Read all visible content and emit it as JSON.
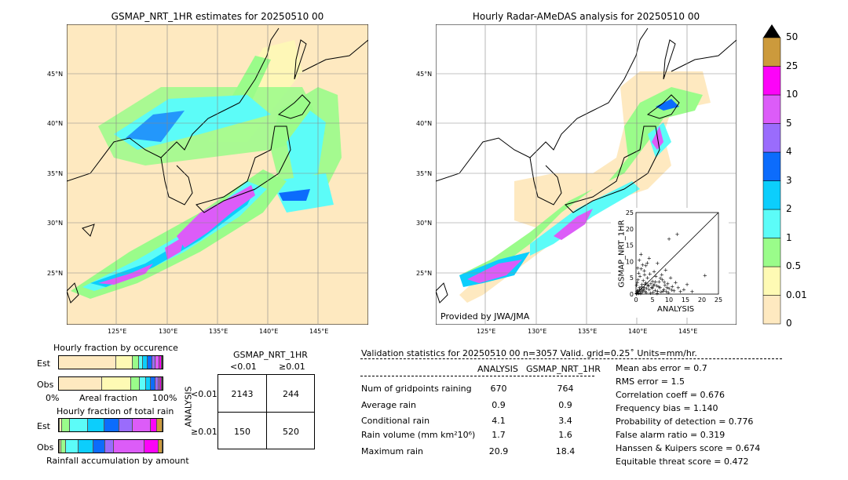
{
  "colors": {
    "land": "#fee9c0",
    "scale": [
      "#fee9c0",
      "#fefab4",
      "#9afc8a",
      "#5cfcf8",
      "#0ccefc",
      "#0c6cfc",
      "#9a6cfc",
      "#dc5cf8",
      "#fc04f8",
      "#cc9a3c"
    ],
    "grid": "#888888"
  },
  "map_left": {
    "title": "GSMAP_NRT_1HR estimates for 20250510 00"
  },
  "map_right": {
    "title": "Hourly Radar-AMeDAS analysis for 20250510 00",
    "credit": "Provided by JWA/JMA"
  },
  "lat_labels": [
    "45°N",
    "40°N",
    "35°N",
    "30°N",
    "25°N"
  ],
  "lon_labels": [
    "125°E",
    "130°E",
    "135°E",
    "140°E",
    "145°E"
  ],
  "colorbar": {
    "labels": [
      "50",
      "25",
      "10",
      "5",
      "4",
      "3",
      "2",
      "1",
      "0.5",
      "0.01",
      "0"
    ]
  },
  "chart_data": {
    "type": "scatter",
    "xlabel": "ANALYSIS",
    "ylabel": "GSMAP_NRT_1HR",
    "xlim": [
      0,
      25
    ],
    "ylim": [
      0,
      25
    ],
    "ticks": [
      "0",
      "5",
      "10",
      "15",
      "20",
      "25"
    ],
    "points": [
      [
        0.3,
        0.5
      ],
      [
        0.5,
        1.2
      ],
      [
        0.8,
        0.4
      ],
      [
        1.0,
        2.1
      ],
      [
        1.2,
        0.8
      ],
      [
        1.5,
        1.6
      ],
      [
        1.8,
        3.0
      ],
      [
        2.0,
        1.1
      ],
      [
        2.2,
        4.2
      ],
      [
        2.5,
        2.0
      ],
      [
        2.8,
        0.9
      ],
      [
        3.0,
        3.5
      ],
      [
        3.2,
        1.8
      ],
      [
        3.5,
        5.0
      ],
      [
        3.8,
        2.5
      ],
      [
        4.0,
        1.5
      ],
      [
        4.2,
        6.2
      ],
      [
        4.5,
        3.2
      ],
      [
        4.8,
        2.2
      ],
      [
        5.0,
        4.0
      ],
      [
        5.2,
        0.6
      ],
      [
        5.5,
        3.0
      ],
      [
        5.8,
        1.2
      ],
      [
        6.0,
        5.5
      ],
      [
        6.3,
        2.6
      ],
      [
        6.6,
        1.0
      ],
      [
        7.0,
        3.8
      ],
      [
        7.3,
        2.0
      ],
      [
        7.6,
        0.7
      ],
      [
        8.0,
        4.5
      ],
      [
        8.4,
        1.5
      ],
      [
        8.8,
        2.8
      ],
      [
        9.2,
        0.9
      ],
      [
        9.6,
        3.3
      ],
      [
        10.0,
        1.8
      ],
      [
        10.5,
        5.0
      ],
      [
        11.0,
        2.4
      ],
      [
        11.5,
        1.1
      ],
      [
        12.0,
        3.6
      ],
      [
        12.8,
        2.0
      ],
      [
        13.5,
        0.8
      ],
      [
        14.5,
        1.5
      ],
      [
        15.5,
        3.0
      ],
      [
        17.0,
        0.9
      ],
      [
        20.9,
        5.8
      ],
      [
        0.5,
        8.0
      ],
      [
        1.0,
        10.5
      ],
      [
        1.5,
        12.2
      ],
      [
        2.0,
        9.0
      ],
      [
        0.8,
        6.5
      ],
      [
        1.2,
        5.5
      ],
      [
        2.5,
        7.2
      ],
      [
        3.0,
        8.8
      ],
      [
        4.0,
        11.0
      ],
      [
        10.0,
        17.0
      ],
      [
        12.5,
        18.4
      ],
      [
        5.5,
        7.0
      ],
      [
        6.5,
        9.5
      ],
      [
        0.2,
        2.8
      ],
      [
        0.4,
        3.6
      ],
      [
        0.6,
        4.4
      ],
      [
        1.6,
        7.8
      ],
      [
        2.6,
        6.0
      ],
      [
        3.4,
        9.6
      ],
      [
        7.8,
        6.0
      ],
      [
        9.0,
        7.5
      ],
      [
        0.1,
        0.2
      ],
      [
        0.2,
        0.1
      ],
      [
        0.3,
        1.0
      ],
      [
        0.7,
        0.2
      ],
      [
        1.1,
        1.4
      ],
      [
        1.4,
        0.3
      ],
      [
        1.7,
        2.3
      ],
      [
        1.9,
        0.6
      ],
      [
        2.3,
        1.5
      ],
      [
        2.7,
        3.1
      ],
      [
        3.1,
        0.5
      ],
      [
        3.6,
        2.9
      ],
      [
        4.4,
        0.4
      ],
      [
        4.9,
        1.9
      ],
      [
        5.4,
        2.7
      ],
      [
        5.9,
        3.9
      ],
      [
        6.4,
        0.3
      ],
      [
        6.9,
        2.3
      ],
      [
        7.4,
        4.9
      ],
      [
        8.2,
        1.0
      ],
      [
        8.6,
        3.7
      ],
      [
        9.4,
        2.1
      ],
      [
        9.8,
        0.5
      ],
      [
        10.8,
        1.3
      ]
    ]
  },
  "hist1": {
    "title": "Hourly fraction by occurence",
    "row_labels": [
      "Est",
      "Obs"
    ],
    "est": [
      0.55,
      0.16,
      0.06,
      0.04,
      0.05,
      0.04,
      0.03,
      0.04,
      0.02,
      0.01
    ],
    "obs": [
      0.42,
      0.28,
      0.08,
      0.06,
      0.05,
      0.04,
      0.03,
      0.02,
      0.01,
      0.01
    ],
    "axis_left": "0%",
    "axis_mid": "Areal fraction",
    "axis_right": "100%"
  },
  "hist2": {
    "title": "Hourly fraction of total rain",
    "row_labels": [
      "Est",
      "Obs"
    ],
    "est": [
      0.01,
      0.02,
      0.08,
      0.17,
      0.16,
      0.14,
      0.13,
      0.18,
      0.06,
      0.05
    ],
    "obs": [
      0.01,
      0.01,
      0.05,
      0.12,
      0.14,
      0.12,
      0.08,
      0.3,
      0.13,
      0.04
    ],
    "footer": "Rainfall accumulation by amount"
  },
  "contingency": {
    "title": "GSMAP_NRT_1HR",
    "col_labels": [
      "<0.01",
      "≥0.01"
    ],
    "row_axis": "ANALYSIS",
    "row_labels": [
      "<0.01",
      "≥0.01"
    ],
    "cells": [
      "2143",
      "244",
      "150",
      "520"
    ]
  },
  "validation": {
    "header": "Validation statistics for 20250510 00  n=3057 Valid. grid=0.25˚ Units=mm/hr.",
    "col1": "ANALYSIS",
    "col2": "GSMAP_NRT_1HR",
    "rows": [
      {
        "label": "Num of gridpoints raining",
        "a": "670",
        "b": "764"
      },
      {
        "label": "Average rain",
        "a": "0.9",
        "b": "0.9"
      },
      {
        "label": "Conditional rain",
        "a": "4.1",
        "b": "3.4"
      },
      {
        "label": "Rain volume (mm km²10⁶)",
        "a": "1.7",
        "b": "1.6"
      },
      {
        "label": "Maximum rain",
        "a": "20.9",
        "b": "18.4"
      }
    ],
    "scores": [
      "Mean abs error =    0.7",
      "RMS error =    1.5",
      "Correlation coeff =  0.676",
      "Frequency bias =  1.140",
      "Probability of detection =  0.776",
      "False alarm ratio =  0.319",
      "Hanssen & Kuipers score =  0.674",
      "Equitable threat score =  0.472"
    ]
  }
}
